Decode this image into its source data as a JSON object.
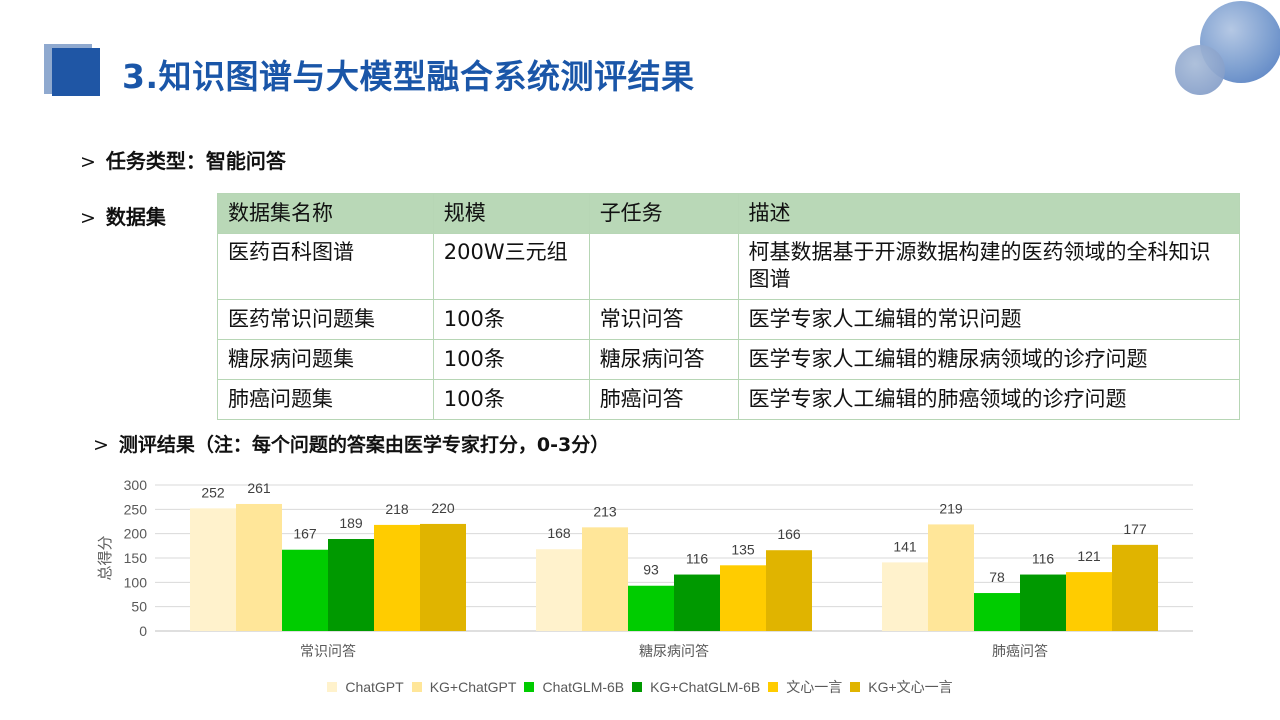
{
  "header": {
    "title": "3.知识图谱与大模型融合系统测评结果"
  },
  "bullets": {
    "arrow": ">",
    "task_type": "任务类型：智能问答",
    "dataset": "数据集",
    "results": "测评结果（注：每个问题的答案由医学专家打分，0-3分）"
  },
  "dataset_table": {
    "headers": [
      "数据集名称",
      "规模",
      "子任务",
      "描述"
    ],
    "rows": [
      [
        "医药百科图谱",
        "200W三元组",
        "",
        "柯基数据基于开源数据构建的医药领域的全科知识图谱"
      ],
      [
        "医药常识问题集",
        "100条",
        "常识问答",
        "医学专家人工编辑的常识问题"
      ],
      [
        "糖尿病问题集",
        "100条",
        "糖尿病问答",
        "医学专家人工编辑的糖尿病领域的诊疗问题"
      ],
      [
        "肺癌问题集",
        "100条",
        "肺癌问答",
        "医学专家人工编辑的肺癌领域的诊疗问题"
      ]
    ]
  },
  "chart_data": {
    "type": "bar",
    "categories": [
      "常识问答",
      "糖尿病问答",
      "肺癌问答"
    ],
    "series": [
      {
        "name": "ChatGPT",
        "values": [
          252,
          168,
          141
        ],
        "color": "#fff2cc"
      },
      {
        "name": "KG+ChatGPT",
        "values": [
          261,
          213,
          219
        ],
        "color": "#ffe699"
      },
      {
        "name": "ChatGLM-6B",
        "values": [
          167,
          93,
          78
        ],
        "color": "#00cc00"
      },
      {
        "name": "KG+ChatGLM-6B",
        "values": [
          189,
          116,
          116
        ],
        "color": "#009900"
      },
      {
        "name": "文心一言",
        "values": [
          218,
          135,
          121
        ],
        "color": "#ffcc00"
      },
      {
        "name": "KG+文心一言",
        "values": [
          220,
          166,
          177
        ],
        "color": "#e0b400"
      }
    ],
    "title": "",
    "xlabel": "",
    "ylabel": "总得分",
    "ylim": [
      0,
      300
    ],
    "yticks": [
      0,
      50,
      100,
      150,
      200,
      250,
      300
    ],
    "grid": true,
    "legend": "bottom"
  }
}
